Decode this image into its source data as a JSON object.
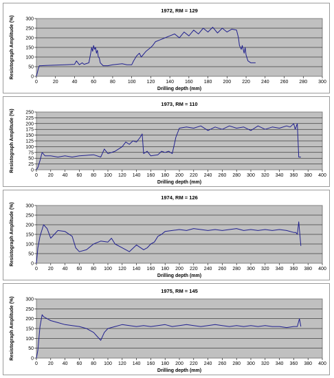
{
  "chart_data": [
    {
      "type": "line",
      "title": "1972, RM = 129",
      "xlabel": "Drilling depth (mm)",
      "ylabel": "Resistograph Amplitude (%)",
      "xlim": [
        0,
        300
      ],
      "ylim": [
        0,
        300
      ],
      "xticks": [
        "0",
        "20",
        "40",
        "60",
        "80",
        "100",
        "120",
        "140",
        "160",
        "180",
        "200",
        "220",
        "240",
        "260",
        "280",
        "300"
      ],
      "yticks": [
        "0",
        "50",
        "100",
        "150",
        "200",
        "250",
        "300"
      ],
      "series_color": "#1f1f8f",
      "plot_background": "#c0c0c0",
      "grid": true,
      "x": [
        0,
        2,
        3,
        5,
        10,
        20,
        30,
        40,
        42,
        45,
        48,
        50,
        55,
        57,
        58,
        59,
        60,
        61,
        62,
        63,
        64,
        65,
        66,
        67,
        70,
        75,
        80,
        90,
        95,
        100,
        102,
        105,
        108,
        110,
        115,
        120,
        122,
        125,
        130,
        135,
        140,
        145,
        150,
        155,
        160,
        165,
        170,
        175,
        180,
        185,
        190,
        195,
        200,
        205,
        210,
        212,
        213,
        215,
        216,
        218,
        219,
        220,
        222,
        225,
        230
      ],
      "y": [
        0,
        40,
        55,
        55,
        56,
        58,
        60,
        62,
        80,
        60,
        70,
        62,
        70,
        120,
        150,
        130,
        160,
        140,
        150,
        120,
        135,
        100,
        95,
        70,
        55,
        55,
        60,
        65,
        60,
        60,
        80,
        105,
        120,
        100,
        130,
        150,
        160,
        180,
        190,
        200,
        210,
        220,
        200,
        230,
        210,
        240,
        220,
        250,
        230,
        255,
        225,
        250,
        230,
        245,
        240,
        200,
        160,
        140,
        160,
        120,
        150,
        110,
        80,
        70,
        70
      ]
    },
    {
      "type": "line",
      "title": "1973, RM = 110",
      "xlabel": "Drilling depth (mm)",
      "ylabel": "Resistograph Amplitude (%)",
      "xlim": [
        0,
        400
      ],
      "ylim": [
        0,
        250
      ],
      "xticks": [
        "0",
        "20",
        "40",
        "60",
        "80",
        "100",
        "120",
        "140",
        "160",
        "180",
        "200",
        "220",
        "240",
        "260",
        "280",
        "300",
        "320",
        "340",
        "360",
        "380",
        "400"
      ],
      "yticks": [
        "0",
        "25",
        "50",
        "75",
        "100",
        "125",
        "150",
        "175",
        "200",
        "225",
        "250"
      ],
      "series_color": "#1f1f8f",
      "plot_background": "#c0c0c0",
      "grid": true,
      "x": [
        0,
        2,
        5,
        8,
        12,
        20,
        30,
        40,
        50,
        60,
        80,
        90,
        95,
        100,
        110,
        120,
        125,
        130,
        135,
        140,
        145,
        148,
        150,
        155,
        160,
        170,
        175,
        180,
        185,
        190,
        193,
        195,
        200,
        210,
        220,
        230,
        240,
        250,
        260,
        270,
        280,
        290,
        300,
        310,
        320,
        330,
        340,
        350,
        355,
        360,
        362,
        365,
        367,
        370
      ],
      "y": [
        0,
        10,
        40,
        75,
        60,
        60,
        55,
        60,
        55,
        60,
        65,
        55,
        90,
        70,
        80,
        100,
        120,
        110,
        125,
        120,
        140,
        155,
        70,
        80,
        60,
        65,
        80,
        75,
        80,
        70,
        110,
        140,
        180,
        185,
        180,
        190,
        170,
        185,
        175,
        190,
        180,
        185,
        170,
        190,
        175,
        185,
        180,
        190,
        185,
        200,
        175,
        200,
        55,
        55
      ]
    },
    {
      "type": "line",
      "title": "1974, RM = 126",
      "xlabel": "Drilling depth (mm)",
      "ylabel": "Resistograph Amplitude (%)",
      "xlim": [
        0,
        400
      ],
      "ylim": [
        0,
        300
      ],
      "xticks": [
        "0",
        "20",
        "40",
        "60",
        "80",
        "100",
        "120",
        "140",
        "160",
        "180",
        "200",
        "220",
        "240",
        "260",
        "280",
        "300",
        "320",
        "340",
        "360",
        "380",
        "400"
      ],
      "yticks": [
        "0",
        "50",
        "100",
        "150",
        "200",
        "250",
        "300"
      ],
      "series_color": "#1f1f8f",
      "plot_background": "#c0c0c0",
      "grid": true,
      "x": [
        0,
        2,
        5,
        10,
        15,
        20,
        25,
        30,
        40,
        50,
        55,
        60,
        70,
        80,
        90,
        100,
        105,
        110,
        120,
        130,
        140,
        150,
        155,
        160,
        165,
        170,
        175,
        180,
        190,
        200,
        210,
        220,
        230,
        240,
        250,
        260,
        270,
        280,
        290,
        300,
        310,
        320,
        330,
        340,
        350,
        360,
        363,
        365,
        367,
        370
      ],
      "y": [
        0,
        80,
        140,
        200,
        180,
        130,
        150,
        170,
        165,
        140,
        80,
        60,
        70,
        100,
        115,
        110,
        130,
        100,
        80,
        60,
        95,
        70,
        80,
        100,
        110,
        140,
        150,
        165,
        170,
        175,
        170,
        180,
        175,
        170,
        175,
        170,
        175,
        180,
        170,
        175,
        170,
        175,
        170,
        175,
        170,
        160,
        160,
        150,
        215,
        90
      ]
    },
    {
      "type": "line",
      "title": "1975, RM = 145",
      "xlabel": "Drilling depth (mm)",
      "ylabel": "Resistograph Amplitude (%)",
      "xlim": [
        0,
        400
      ],
      "ylim": [
        0,
        300
      ],
      "xticks": [
        "0",
        "20",
        "40",
        "60",
        "80",
        "100",
        "120",
        "140",
        "160",
        "180",
        "200",
        "220",
        "240",
        "260",
        "280",
        "300",
        "320",
        "340",
        "360",
        "380",
        "400"
      ],
      "yticks": [
        "0",
        "50",
        "100",
        "150",
        "200",
        "250",
        "300"
      ],
      "series_color": "#1f1f8f",
      "plot_background": "#c0c0c0",
      "grid": true,
      "x": [
        0,
        2,
        5,
        8,
        10,
        15,
        20,
        30,
        40,
        50,
        60,
        70,
        80,
        85,
        90,
        95,
        100,
        110,
        120,
        130,
        140,
        150,
        160,
        170,
        180,
        190,
        200,
        210,
        220,
        230,
        240,
        250,
        260,
        270,
        280,
        290,
        300,
        310,
        320,
        330,
        340,
        350,
        360,
        365,
        368,
        370
      ],
      "y": [
        0,
        40,
        160,
        220,
        210,
        200,
        190,
        180,
        170,
        165,
        160,
        150,
        130,
        110,
        90,
        130,
        150,
        160,
        170,
        165,
        160,
        165,
        160,
        165,
        170,
        160,
        165,
        170,
        165,
        160,
        165,
        170,
        165,
        160,
        165,
        160,
        165,
        160,
        165,
        160,
        160,
        155,
        160,
        160,
        200,
        160
      ]
    }
  ]
}
